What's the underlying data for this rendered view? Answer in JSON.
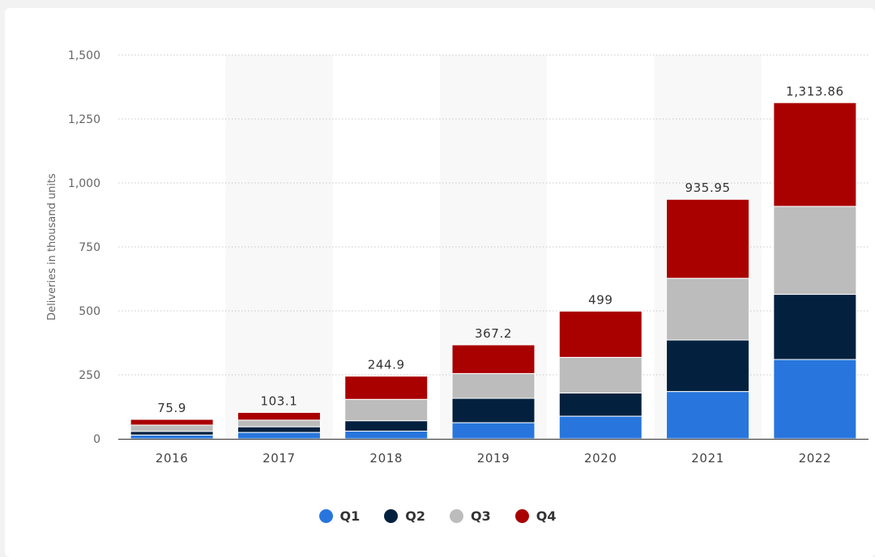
{
  "chart_data": {
    "type": "bar",
    "stacked": true,
    "title": "",
    "xlabel": "",
    "ylabel": "Deliveries in thousand units",
    "ylim": [
      0,
      1500
    ],
    "yticks": [
      0,
      250,
      500,
      750,
      1000,
      1250,
      1500
    ],
    "ytick_labels": [
      "0",
      "250",
      "500",
      "750",
      "1,000",
      "1,250",
      "1,500"
    ],
    "categories": [
      "2016",
      "2017",
      "2018",
      "2019",
      "2020",
      "2021",
      "2022"
    ],
    "series": [
      {
        "name": "Q1",
        "color": "#2876dd",
        "values": [
          14.8,
          25.0,
          30.0,
          63.0,
          88.4,
          184.8,
          310.0
        ]
      },
      {
        "name": "Q2",
        "color": "#03213f",
        "values": [
          14.4,
          22.0,
          40.7,
          95.2,
          90.7,
          201.3,
          254.7
        ]
      },
      {
        "name": "Q3",
        "color": "#bcbcbc",
        "values": [
          24.5,
          26.1,
          83.5,
          97.0,
          139.3,
          241.3,
          343.8
        ]
      },
      {
        "name": "Q4",
        "color": "#a90000",
        "values": [
          22.2,
          30.0,
          90.7,
          112.0,
          180.6,
          308.6,
          405.3
        ]
      }
    ],
    "totals": [
      75.9,
      103.1,
      244.9,
      367.2,
      499,
      935.95,
      1313.86
    ],
    "total_labels": [
      "75.9",
      "103.1",
      "244.9",
      "367.2",
      "499",
      "935.95",
      "1,313.86"
    ],
    "grid": true,
    "legend_position": "bottom-center"
  }
}
